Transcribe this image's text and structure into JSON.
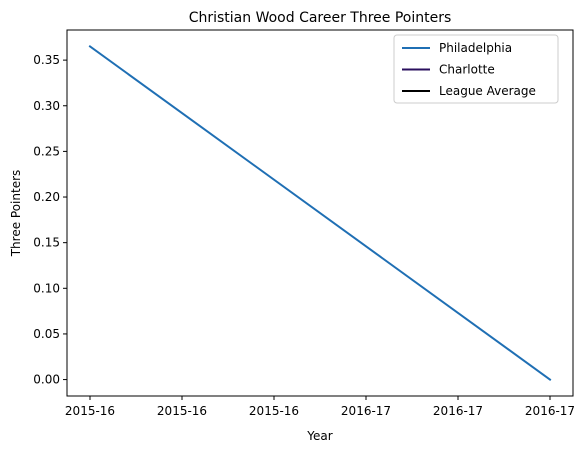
{
  "chart_data": {
    "type": "line",
    "title": "Christian Wood Career Three Pointers",
    "xlabel": "Year",
    "ylabel": "Three Pointers",
    "x_positions": [
      0,
      1,
      2,
      3,
      4,
      5
    ],
    "x_tick_labels": [
      "2015-16",
      "2015-16",
      "2015-16",
      "2016-17",
      "2016-17",
      "2016-17"
    ],
    "xlim": [
      -0.25,
      5.25
    ],
    "ylim": [
      -0.018,
      0.383
    ],
    "y_ticks": [
      0.0,
      0.05,
      0.1,
      0.15,
      0.2,
      0.25,
      0.3,
      0.35
    ],
    "y_tick_labels": [
      "0.00",
      "0.05",
      "0.10",
      "0.15",
      "0.20",
      "0.25",
      "0.30",
      "0.35"
    ],
    "grid": false,
    "legend_position": "top-right",
    "series": [
      {
        "name": "Philadelphia",
        "color": "#1f6fb4",
        "points": [
          {
            "x": 0,
            "y": 0.365
          },
          {
            "x": 5,
            "y": 0.0
          }
        ]
      },
      {
        "name": "Charlotte",
        "color": "#2a0f5e",
        "points": []
      },
      {
        "name": "League Average",
        "color": "#000000",
        "points": []
      }
    ]
  }
}
